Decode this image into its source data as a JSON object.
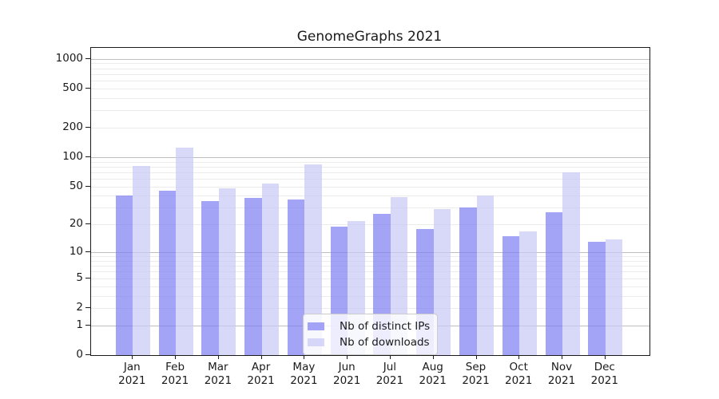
{
  "chart_data": {
    "type": "bar",
    "title": "GenomeGraphs 2021",
    "categories": [
      "Jan 2021",
      "Feb 2021",
      "Mar 2021",
      "Apr 2021",
      "May 2021",
      "Jun 2021",
      "Jul 2021",
      "Aug 2021",
      "Sep 2021",
      "Oct 2021",
      "Nov 2021",
      "Dec 2021"
    ],
    "series": [
      {
        "name": "Nb of distinct IPs",
        "key": "ips",
        "color": "rgba(125,125,244,0.7)",
        "values": [
          40,
          45,
          35,
          38,
          37,
          19,
          26,
          18,
          30,
          15,
          27,
          13
        ]
      },
      {
        "name": "Nb of downloads",
        "key": "downloads",
        "color": "rgba(199,199,245,0.7)",
        "values": [
          82,
          125,
          48,
          54,
          85,
          22,
          39,
          29,
          40,
          17,
          70,
          14
        ]
      }
    ],
    "xlabel": "",
    "ylabel": "",
    "yscale": "log1p",
    "y_ticks": [
      0,
      1,
      2,
      5,
      10,
      20,
      50,
      100,
      200,
      500,
      1000
    ],
    "ylim": [
      0,
      1290
    ],
    "grid": "horizontal major+minor log",
    "legend_position": "inside lower-center"
  },
  "colors": {
    "grid_major": "#bfbfbf",
    "grid_minor": "#ececec",
    "axis": "#1a1a1a",
    "text": "#1a1a1a",
    "legend_border": "#cccccc",
    "legend_bg": "rgba(255,255,255,0.8)"
  }
}
